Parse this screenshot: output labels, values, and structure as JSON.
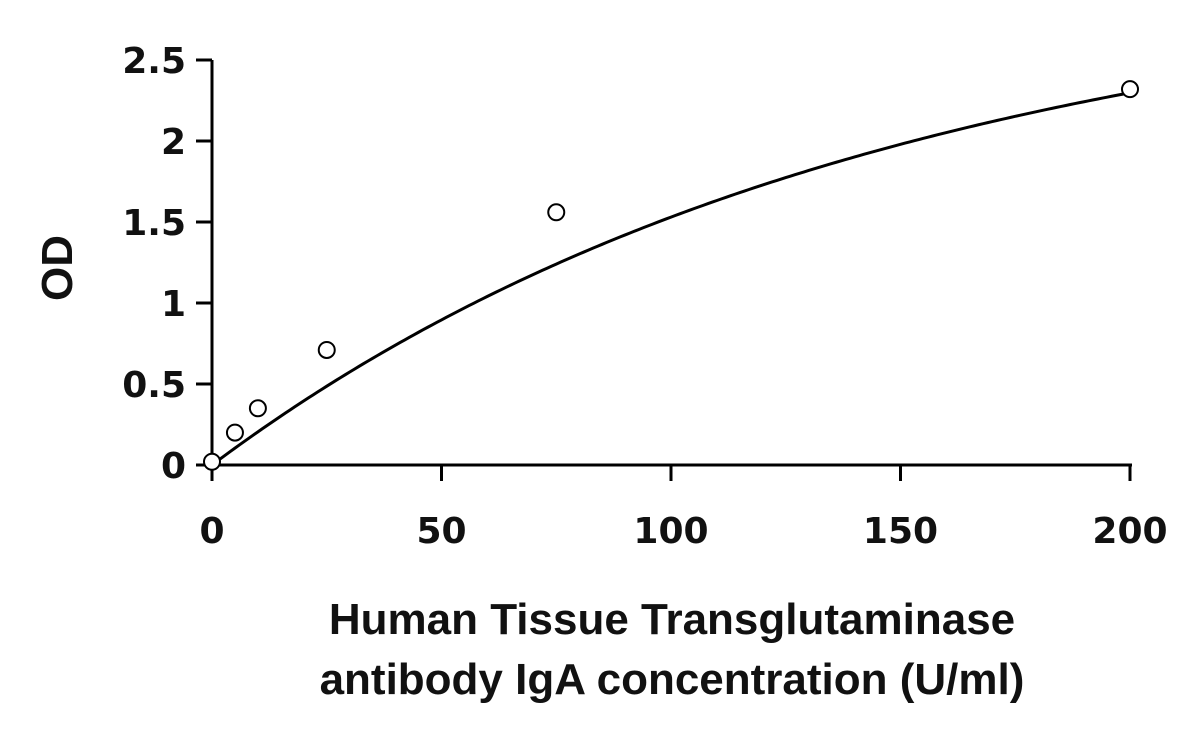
{
  "chart_data": {
    "type": "scatter",
    "title": "",
    "xlabel_lines": [
      "Human Tissue Transglutaminase",
      "antibody IgA concentration (U/ml)"
    ],
    "ylabel": "OD",
    "xlim": [
      0,
      200
    ],
    "ylim": [
      0,
      2.5
    ],
    "x_ticks": [
      0,
      50,
      100,
      150,
      200
    ],
    "y_ticks": [
      0,
      0.5,
      1,
      1.5,
      2,
      2.5
    ],
    "x_tick_labels": [
      "0",
      "50",
      "100",
      "150",
      "200"
    ],
    "y_tick_labels": [
      "0",
      "0.5",
      "1",
      "1.5",
      "2",
      "2.5"
    ],
    "grid": false,
    "legend": "none",
    "series": [
      {
        "x": [
          0,
          5,
          10,
          25,
          75,
          200
        ],
        "y": [
          0.02,
          0.2,
          0.35,
          0.71,
          1.56,
          2.32
        ],
        "marker": "open-circle",
        "fit_curve": true
      }
    ],
    "colors": {
      "line": "#000000",
      "marker_fill": "#ffffff",
      "axis": "#000000"
    }
  }
}
